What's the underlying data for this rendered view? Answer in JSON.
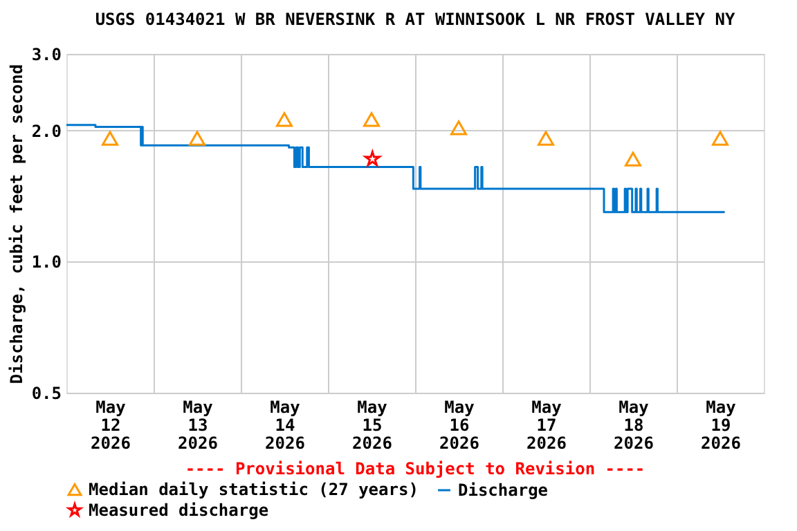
{
  "chart_data": {
    "type": "step",
    "title": "USGS 01434021 W BR NEVERSINK R AT WINNISOOK L NR FROST VALLEY NY",
    "ylabel": "Discharge, cubic feet per second",
    "annotations": [
      "---- Provisional Data Subject to Revision ----"
    ],
    "log": true,
    "grid": true,
    "legend": "bottom",
    "ylim": [
      0.5,
      3.0
    ],
    "yticks": [
      0.5,
      {
        "value": 1,
        "label": "1.0"
      },
      {
        "value": 2,
        "label": "2.0"
      },
      {
        "value": 3,
        "label": "3.0"
      }
    ],
    "xlim": [
      "2026-05-12T00:00",
      "2026-05-20T00:00"
    ],
    "xticks": [
      {
        "value": "2026-05-12T12:00",
        "label": "May 12 2026"
      },
      {
        "value": "2026-05-13T12:00",
        "label": "May 13 2026"
      },
      {
        "value": "2026-05-14T12:00",
        "label": "May 14 2026"
      },
      {
        "value": "2026-05-15T12:00",
        "label": "May 15 2026"
      },
      {
        "value": "2026-05-16T12:00",
        "label": "May 16 2026"
      },
      {
        "value": "2026-05-17T12:00",
        "label": "May 17 2026"
      },
      {
        "value": "2026-05-18T12:00",
        "label": "May 18 2026"
      },
      {
        "value": "2026-05-19T12:00",
        "label": "May 19 2026"
      },
      {
        "value": "2026-05-13T00:00",
        "label": null
      },
      {
        "value": "2026-05-14T00:00",
        "label": null
      },
      {
        "value": "2026-05-15T00:00",
        "label": null
      },
      {
        "value": "2026-05-16T00:00",
        "label": null
      },
      {
        "value": "2026-05-17T00:00",
        "label": null
      },
      {
        "value": "2026-05-18T00:00",
        "label": null
      },
      {
        "value": "2026-05-19T00:00",
        "label": null
      }
    ],
    "series": [
      {
        "name": "Median daily statistic (27 years)",
        "type": "scatter",
        "marker": "triangle",
        "color": "#ff9900",
        "x": [
          "2026-05-12T12:00",
          "2026-05-13T12:00",
          "2026-05-14T12:00",
          "2026-05-15T12:00",
          "2026-05-16T12:00",
          "2026-05-17T12:00",
          "2026-05-18T12:00",
          "2026-05-19T12:00"
        ],
        "values": [
          1.92,
          1.92,
          2.12,
          2.12,
          2.03,
          1.92,
          1.72,
          1.92
        ]
      },
      {
        "name": "Measured discharge",
        "type": "scatter",
        "marker": "star",
        "color": "#ff0000",
        "x": [
          "2026-05-15T12:15"
        ],
        "values": [
          1.72
        ]
      },
      {
        "name": "Discharge",
        "marker": "none",
        "color": "#0077cc",
        "x": [
          "2026-05-12T00:00",
          "2026-05-12T08:00",
          "2026-05-12T20:30",
          "2026-05-12T20:45",
          "2026-05-12T21:00",
          "2026-05-14T13:15",
          "2026-05-14T14:45",
          "2026-05-14T15:15",
          "2026-05-14T15:45",
          "2026-05-14T16:15",
          "2026-05-14T17:00",
          "2026-05-14T18:15",
          "2026-05-14T18:45",
          "2026-05-15T23:30",
          "2026-05-16T01:15",
          "2026-05-16T01:30",
          "2026-05-16T16:30",
          "2026-05-16T17:15",
          "2026-05-16T18:15",
          "2026-05-16T18:30",
          "2026-05-18T04:00",
          "2026-05-18T06:30",
          "2026-05-18T06:45",
          "2026-05-18T07:15",
          "2026-05-18T07:30",
          "2026-05-18T09:45",
          "2026-05-18T10:00",
          "2026-05-18T10:30",
          "2026-05-18T11:45",
          "2026-05-18T12:45",
          "2026-05-18T13:00",
          "2026-05-18T14:00",
          "2026-05-18T14:15",
          "2026-05-18T16:00",
          "2026-05-18T16:15",
          "2026-05-18T18:30",
          "2026-05-18T18:45",
          "2026-05-19T13:15"
        ],
        "values": [
          2.06,
          2.04,
          1.85,
          2.04,
          1.85,
          1.83,
          1.65,
          1.83,
          1.65,
          1.83,
          1.65,
          1.83,
          1.65,
          1.47,
          1.65,
          1.47,
          1.65,
          1.47,
          1.65,
          1.47,
          1.3,
          1.47,
          1.3,
          1.47,
          1.3,
          1.47,
          1.3,
          1.47,
          1.3,
          1.47,
          1.3,
          1.47,
          1.3,
          1.47,
          1.3,
          1.47,
          1.3,
          1.3
        ]
      }
    ]
  }
}
